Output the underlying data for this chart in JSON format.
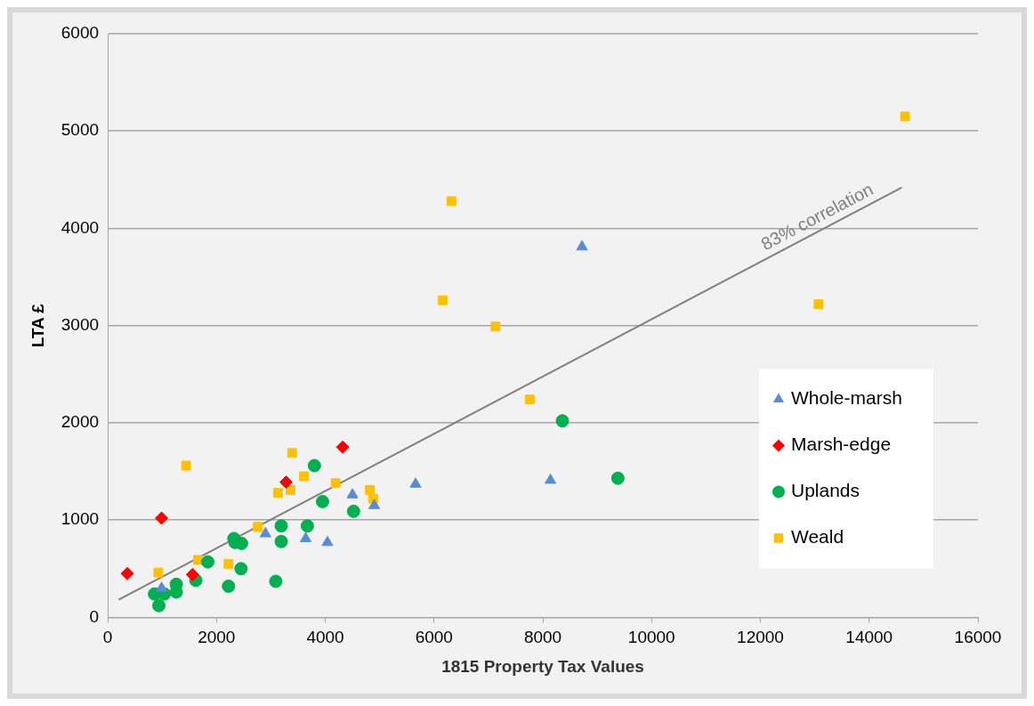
{
  "chart_data": {
    "type": "scatter",
    "xlabel": "1815 Property Tax Values",
    "ylabel": "LTA £",
    "xlim": [
      0,
      16000
    ],
    "xticks": [
      0,
      2000,
      4000,
      6000,
      8000,
      10000,
      12000,
      14000,
      16000
    ],
    "ylim": [
      0,
      6000
    ],
    "yticks": [
      0,
      1000,
      2000,
      3000,
      4000,
      5000,
      6000
    ],
    "grid": "y",
    "legend": "right",
    "annotations": [
      "83% correlation"
    ],
    "series": [
      {
        "name": "Whole-marsh",
        "color": "#558ed5",
        "marker": "triangle",
        "x": [
          990,
          2900,
          3640,
          4040,
          4500,
          4900,
          5660,
          8140,
          8720
        ],
        "values": [
          300,
          860,
          810,
          770,
          1260,
          1150,
          1370,
          1410,
          3810
        ]
      },
      {
        "name": "Marsh-edge",
        "color": "#ff0000",
        "marker": "diamond",
        "x": [
          360,
          990,
          1560,
          3280,
          4320
        ],
        "values": [
          450,
          1020,
          440,
          1390,
          1750
        ]
      },
      {
        "name": "Uplands",
        "color": "#00b050",
        "marker": "circle",
        "x": [
          860,
          1040,
          940,
          1260,
          1260,
          1620,
          1840,
          2320,
          2340,
          2460,
          2450,
          2220,
          3090,
          3190,
          3190,
          3670,
          3950,
          3800,
          4520,
          8360,
          9380
        ],
        "values": [
          240,
          240,
          120,
          340,
          260,
          380,
          570,
          810,
          770,
          760,
          500,
          320,
          370,
          940,
          780,
          940,
          1190,
          1560,
          1090,
          2020,
          1430
        ]
      },
      {
        "name": "Weald",
        "color": "#ffc000",
        "marker": "square",
        "x": [
          930,
          1440,
          1660,
          2220,
          2760,
          3130,
          3360,
          3390,
          3610,
          4190,
          4820,
          4880,
          6320,
          6160,
          7130,
          7760,
          13070,
          14660
        ],
        "values": [
          460,
          1560,
          590,
          550,
          930,
          1280,
          1310,
          1690,
          1450,
          1380,
          1310,
          1220,
          4280,
          3260,
          2990,
          2240,
          3220,
          5150
        ]
      },
      {
        "type": "line",
        "color": "#808080",
        "marker": "none",
        "x": [
          200,
          14600
        ],
        "values": [
          180,
          4420
        ]
      }
    ]
  }
}
